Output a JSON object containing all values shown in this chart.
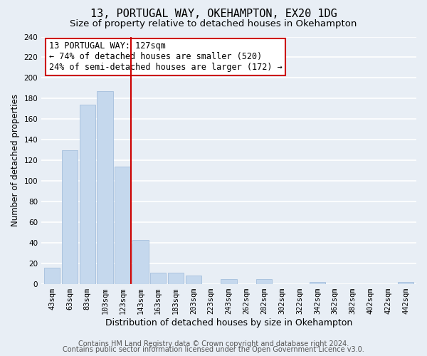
{
  "title": "13, PORTUGAL WAY, OKEHAMPTON, EX20 1DG",
  "subtitle": "Size of property relative to detached houses in Okehampton",
  "xlabel": "Distribution of detached houses by size in Okehampton",
  "ylabel": "Number of detached properties",
  "categories": [
    "43sqm",
    "63sqm",
    "83sqm",
    "103sqm",
    "123sqm",
    "143sqm",
    "163sqm",
    "183sqm",
    "203sqm",
    "223sqm",
    "243sqm",
    "262sqm",
    "282sqm",
    "302sqm",
    "322sqm",
    "342sqm",
    "362sqm",
    "382sqm",
    "402sqm",
    "422sqm",
    "442sqm"
  ],
  "values": [
    16,
    130,
    174,
    187,
    114,
    43,
    11,
    11,
    8,
    0,
    5,
    0,
    5,
    0,
    0,
    2,
    0,
    0,
    0,
    0,
    2
  ],
  "bar_color": "#c5d8ed",
  "marker_line_index": 4,
  "annotation_label": "13 PORTUGAL WAY: 127sqm",
  "annotation_line1": "← 74% of detached houses are smaller (520)",
  "annotation_line2": "24% of semi-detached houses are larger (172) →",
  "ylim": [
    0,
    240
  ],
  "yticks": [
    0,
    20,
    40,
    60,
    80,
    100,
    120,
    140,
    160,
    180,
    200,
    220,
    240
  ],
  "footer1": "Contains HM Land Registry data © Crown copyright and database right 2024.",
  "footer2": "Contains public sector information licensed under the Open Government Licence v3.0.",
  "background_color": "#e8eef5",
  "plot_bg_color": "#e8eef5",
  "grid_color": "#ffffff",
  "annotation_box_color": "#ffffff",
  "annotation_border_color": "#cc0000",
  "red_line_color": "#cc0000",
  "title_fontsize": 11,
  "subtitle_fontsize": 9.5,
  "xlabel_fontsize": 9,
  "ylabel_fontsize": 8.5,
  "tick_fontsize": 7.5,
  "annotation_fontsize": 8.5,
  "footer_fontsize": 7
}
